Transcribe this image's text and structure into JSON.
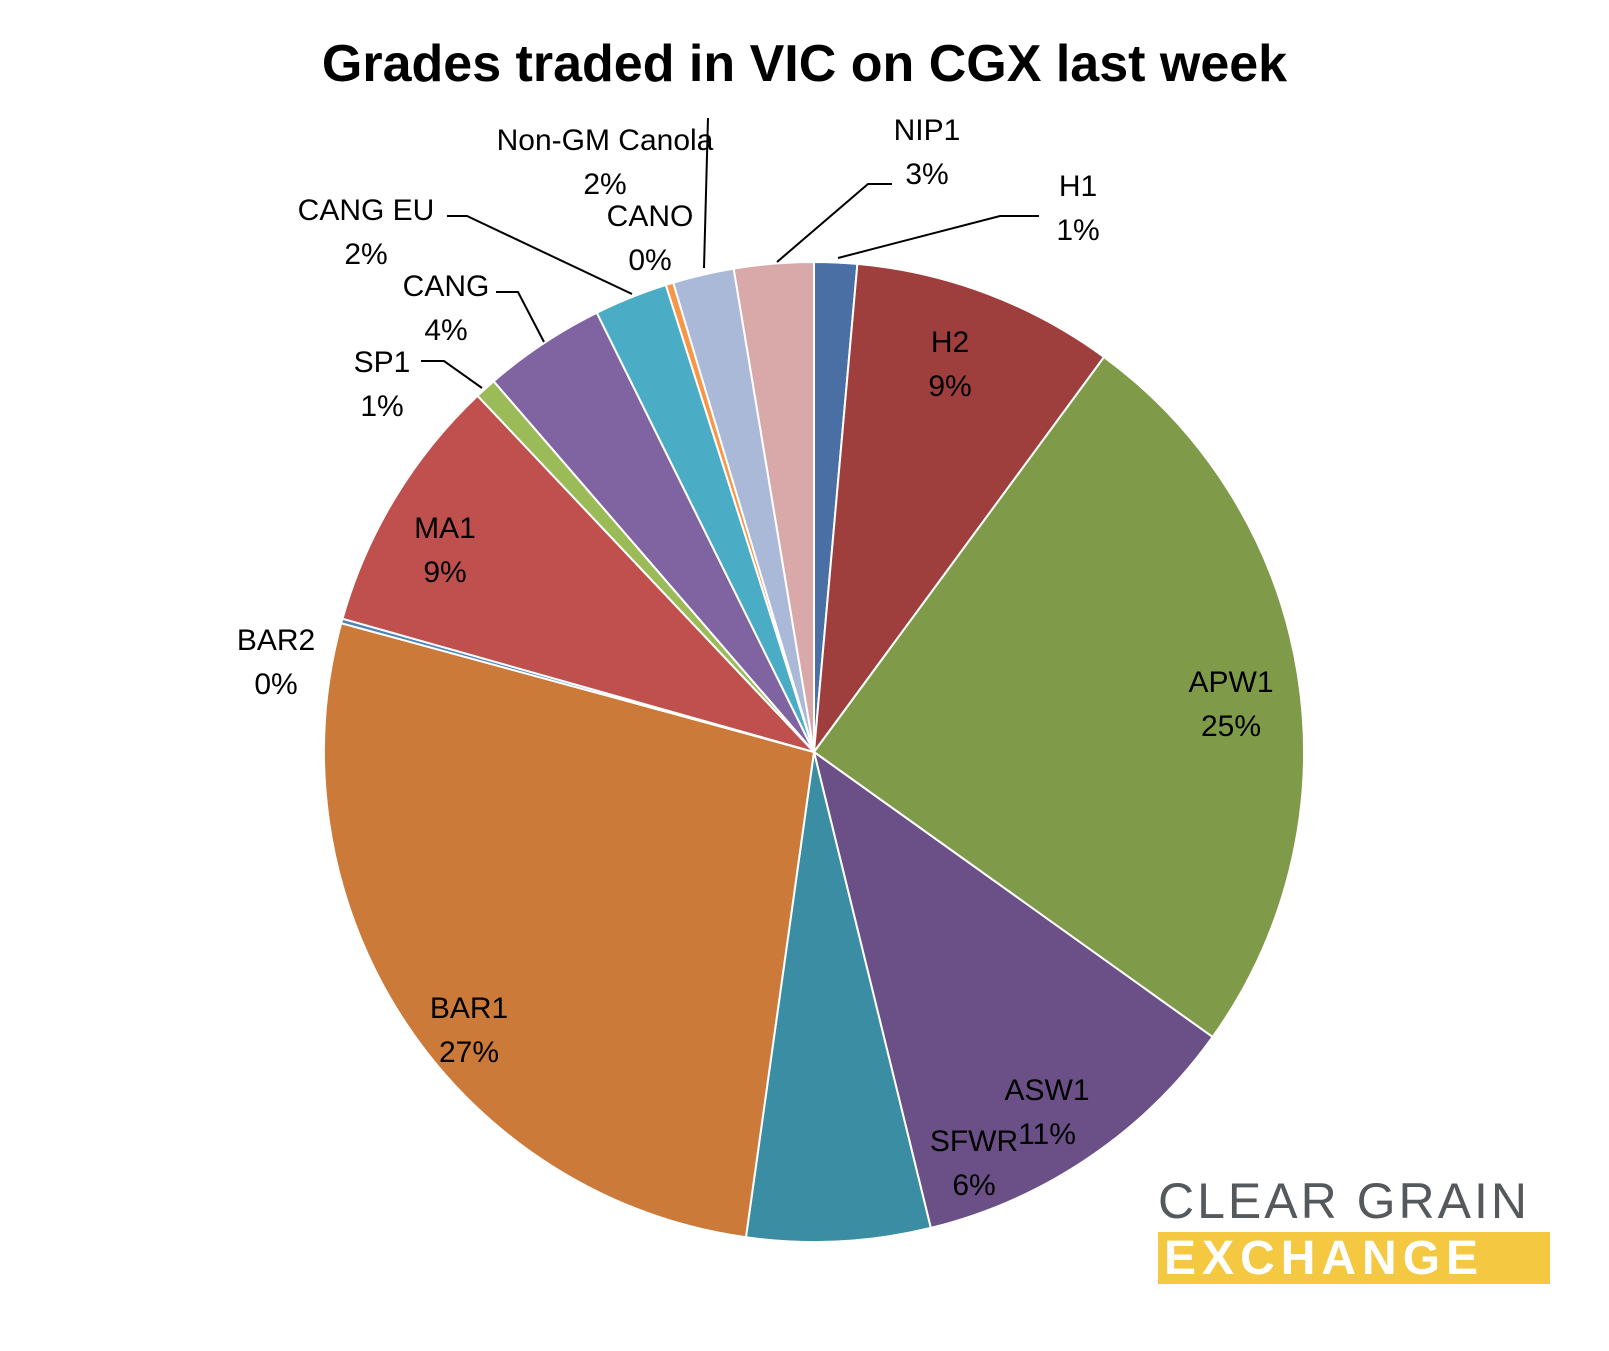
{
  "chart_data": {
    "type": "pie",
    "title": "Grades traded in VIC on CGX last week",
    "slices": [
      {
        "label": "H1",
        "percent_label": "1%",
        "value": 1.4,
        "color": "#4a6fa5"
      },
      {
        "label": "H2",
        "percent_label": "9%",
        "value": 8.6,
        "color": "#9e3f3e"
      },
      {
        "label": "APW1",
        "percent_label": "25%",
        "value": 24.6,
        "color": "#7f9a48"
      },
      {
        "label": "ASW1",
        "percent_label": "11%",
        "value": 11.2,
        "color": "#6a5086"
      },
      {
        "label": "SFWR",
        "percent_label": "6%",
        "value": 6.0,
        "color": "#3a8da3"
      },
      {
        "label": "BAR1",
        "percent_label": "27%",
        "value": 26.8,
        "color": "#cc7a3a"
      },
      {
        "label": "BAR2",
        "percent_label": "0%",
        "value": 0.15,
        "color": "#4f81bd"
      },
      {
        "label": "MA1",
        "percent_label": "9%",
        "value": 8.5,
        "color": "#c0504d"
      },
      {
        "label": "SP1",
        "percent_label": "1%",
        "value": 0.7,
        "color": "#9bbb59"
      },
      {
        "label": "CANG",
        "percent_label": "4%",
        "value": 4.0,
        "color": "#8064a2"
      },
      {
        "label": "CANG EU",
        "percent_label": "2%",
        "value": 2.4,
        "color": "#4bacc6"
      },
      {
        "label": "CANO",
        "percent_label": "0%",
        "value": 0.25,
        "color": "#f79646"
      },
      {
        "label": "Non-GM Canola",
        "percent_label": "2%",
        "value": 2.0,
        "color": "#aab9d8"
      },
      {
        "label": "NIP1",
        "percent_label": "3%",
        "value": 2.6,
        "color": "#d9a9a9"
      }
    ]
  },
  "logo": {
    "line1": "CLEAR GRAIN",
    "line2": "EXCHANGE",
    "line1_color": "#55595c",
    "line2_bg_color": "#f5c842"
  }
}
